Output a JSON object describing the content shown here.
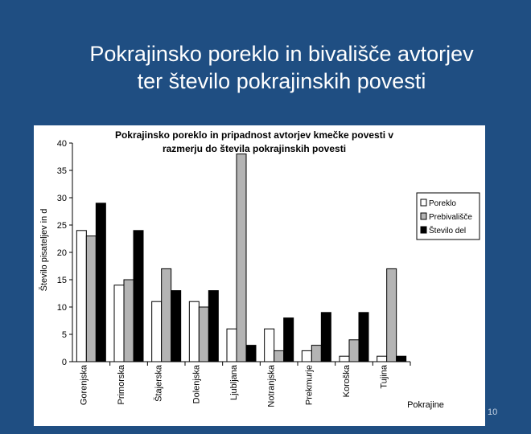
{
  "slide": {
    "title_line1": "Pokrajinsko poreklo in bivališče avtorjev",
    "title_line2": "ter število pokrajinskih povesti",
    "page_number": "10"
  },
  "colors": {
    "background": "#1f4e82",
    "series": [
      "#ffffff",
      "#b4b4b4",
      "#000000"
    ]
  },
  "chart_data": {
    "type": "bar",
    "title_line1": "Pokrajinsko poreklo in pripadnost avtorjev kmečke povesti v",
    "title_line2": "razmerju do števila pokrajinskih povesti",
    "ylabel": "Število pisateljev in d",
    "xlabel": "Pokrajine",
    "ylim": [
      0,
      40
    ],
    "yticks": [
      "0",
      "5",
      "10",
      "15",
      "20",
      "25",
      "30",
      "35",
      "40"
    ],
    "categories": [
      "Gorenjska",
      "Primorska",
      "Štajerska",
      "Dolenjska",
      "Ljubljana",
      "Notranjska",
      "Prekmurje",
      "Koroška",
      "Tujina"
    ],
    "series": [
      {
        "name": "Poreklo",
        "values": [
          24,
          14,
          11,
          11,
          6,
          6,
          2,
          1,
          1
        ]
      },
      {
        "name": "Prebivališče",
        "values": [
          23,
          15,
          17,
          10,
          38,
          2,
          3,
          4,
          17
        ]
      },
      {
        "name": "Število del",
        "values": [
          29,
          24,
          13,
          13,
          3,
          8,
          9,
          9,
          1
        ]
      }
    ],
    "legend_position": "right",
    "grid": false
  }
}
